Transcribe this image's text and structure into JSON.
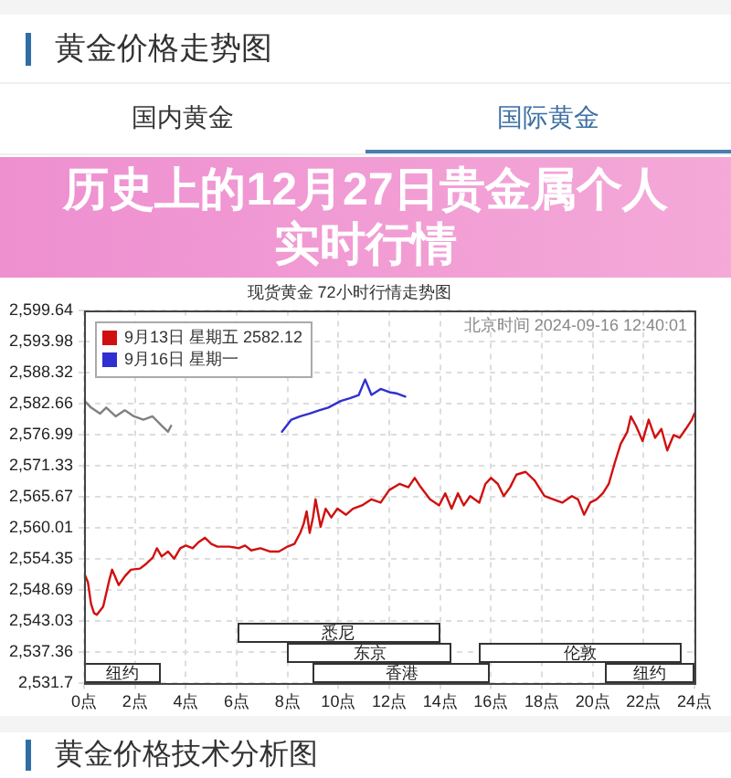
{
  "chart_data": {
    "type": "line",
    "title": "历史上的12月27日贵金属个人实时行情",
    "subtitle": "现货黄金 72小时行情走势图",
    "annotations": [
      "黄金价格走势图",
      "国内黄金",
      "国际黄金",
      "北京时间 2024-09-16 12:40:01",
      "黄金价格技术分析图"
    ],
    "series": [
      {
        "name": "9月13日 星期五 2582.12",
        "color": "#d01010",
        "x": [
          0,
          0.15,
          0.27,
          0.39,
          0.5,
          0.75,
          1.0,
          1.1,
          1.36,
          1.6,
          1.84,
          2.2,
          2.45,
          2.7,
          2.86,
          3.05,
          3.3,
          3.54,
          3.78,
          4.0,
          4.27,
          4.5,
          4.75,
          5.0,
          5.24,
          5.72,
          6.08,
          6.33,
          6.57,
          6.93,
          7.3,
          7.66,
          8.0,
          8.27,
          8.5,
          8.63,
          8.75,
          8.87,
          9.0,
          9.1,
          9.3,
          9.5,
          9.72,
          9.96,
          10.3,
          10.57,
          10.93,
          11.3,
          11.66,
          12.0,
          12.4,
          12.75,
          13.0,
          13.24,
          13.6,
          13.96,
          14.2,
          14.45,
          14.7,
          14.93,
          15.18,
          15.54,
          15.78,
          16.0,
          16.27,
          16.5,
          16.75,
          17.0,
          17.36,
          17.72,
          18.1,
          18.45,
          18.8,
          19.18,
          19.42,
          19.66,
          19.9,
          20.15,
          20.4,
          20.63,
          20.87,
          21.1,
          21.36,
          21.5,
          21.7,
          21.96,
          22.2,
          22.45,
          22.7,
          22.93,
          23.18,
          23.42,
          23.66,
          23.9,
          24.0
        ],
        "values": [
          2551.8,
          2550.1,
          2546.2,
          2544.5,
          2544.2,
          2545.7,
          2550.7,
          2552.4,
          2549.6,
          2551.2,
          2552.4,
          2552.6,
          2553.5,
          2554.6,
          2556.3,
          2554.8,
          2555.7,
          2554.4,
          2556.3,
          2556.8,
          2556.3,
          2557.4,
          2558.2,
          2557.1,
          2556.6,
          2556.6,
          2556.3,
          2556.8,
          2555.9,
          2556.3,
          2555.7,
          2555.7,
          2556.6,
          2557.1,
          2559.1,
          2560.7,
          2563.0,
          2559.1,
          2561.9,
          2565.2,
          2560.2,
          2563.5,
          2561.9,
          2563.5,
          2562.4,
          2563.5,
          2564.1,
          2565.2,
          2564.6,
          2566.9,
          2568.0,
          2567.4,
          2569.1,
          2567.4,
          2565.2,
          2564.1,
          2566.3,
          2563.5,
          2566.3,
          2564.1,
          2565.8,
          2564.6,
          2568.0,
          2569.1,
          2568.0,
          2565.8,
          2567.4,
          2569.7,
          2570.2,
          2568.6,
          2565.8,
          2565.2,
          2564.6,
          2565.8,
          2565.2,
          2562.4,
          2564.6,
          2565.2,
          2566.3,
          2568.0,
          2571.9,
          2575.3,
          2577.5,
          2580.3,
          2578.6,
          2575.8,
          2579.7,
          2576.4,
          2578.0,
          2574.1,
          2576.9,
          2576.4,
          2578.0,
          2579.7,
          2580.8
        ]
      },
      {
        "name": "9月16日 星期一",
        "color": "#3030d0",
        "x": [
          7.78,
          8.15,
          8.5,
          8.87,
          9.24,
          9.6,
          10.09,
          10.45,
          10.8,
          11.05,
          11.3,
          11.66,
          12.0,
          12.27,
          12.63
        ],
        "values": [
          2577.5,
          2579.7,
          2580.3,
          2580.8,
          2581.4,
          2581.9,
          2583.1,
          2583.6,
          2584.2,
          2587.0,
          2584.2,
          2585.3,
          2584.7,
          2584.5,
          2583.9
        ]
      },
      {
        "color": "#808080",
        "x": [
          0.02,
          0.27,
          0.63,
          0.87,
          1.24,
          1.6,
          1.96,
          2.33,
          2.69,
          3.05,
          3.3,
          3.42
        ],
        "values": [
          2583.1,
          2581.9,
          2580.8,
          2581.9,
          2580.3,
          2581.4,
          2580.3,
          2579.7,
          2580.3,
          2578.6,
          2577.5,
          2578.6
        ]
      }
    ],
    "xlim": [
      0,
      24
    ],
    "xticks": [
      {
        "value": 0,
        "label": "0点"
      },
      {
        "value": 2,
        "label": "2点"
      },
      {
        "value": 4,
        "label": "4点"
      },
      {
        "value": 6,
        "label": "6点"
      },
      {
        "value": 8,
        "label": "8点"
      },
      {
        "value": 10,
        "label": "10点"
      },
      {
        "value": 12,
        "label": "12点"
      },
      {
        "value": 14,
        "label": "14点"
      },
      {
        "value": 16,
        "label": "16点"
      },
      {
        "value": 18,
        "label": "18点"
      },
      {
        "value": 20,
        "label": "20点"
      },
      {
        "value": 22,
        "label": "22点"
      },
      {
        "value": 24,
        "label": "24点"
      }
    ],
    "ylim": [
      2531.7,
      2599.64
    ],
    "yticks": [
      {
        "value": 2531.7,
        "label": "2,531.7"
      },
      {
        "value": 2537.36,
        "label": "2,537.36"
      },
      {
        "value": 2543.03,
        "label": "2,543.03"
      },
      {
        "value": 2548.69,
        "label": "2,548.69"
      },
      {
        "value": 2554.35,
        "label": "2,554.35"
      },
      {
        "value": 2560.01,
        "label": "2,560.01"
      },
      {
        "value": 2565.67,
        "label": "2,565.67"
      },
      {
        "value": 2571.33,
        "label": "2,571.33"
      },
      {
        "value": 2576.99,
        "label": "2,576.99"
      },
      {
        "value": 2582.66,
        "label": "2,582.66"
      },
      {
        "value": 2588.32,
        "label": "2,588.32"
      },
      {
        "value": 2593.98,
        "label": "2,593.98"
      },
      {
        "value": 2599.64,
        "label": "2,599.64"
      }
    ],
    "bands": [
      {
        "axis": "x",
        "from": 0,
        "to": 3,
        "label": "纽约"
      },
      {
        "axis": "x",
        "from": 9,
        "to": 16,
        "label": "香港"
      },
      {
        "axis": "x",
        "from": 20.5,
        "to": 24,
        "label": "纽约"
      },
      {
        "axis": "x",
        "from": 8,
        "to": 14.5,
        "label": "东京"
      },
      {
        "axis": "x",
        "from": 15.5,
        "to": 23.5,
        "label": "伦敦"
      },
      {
        "axis": "x",
        "from": 6,
        "to": 14,
        "label": "悉尼"
      }
    ],
    "grid": true,
    "legend": "top left"
  }
}
